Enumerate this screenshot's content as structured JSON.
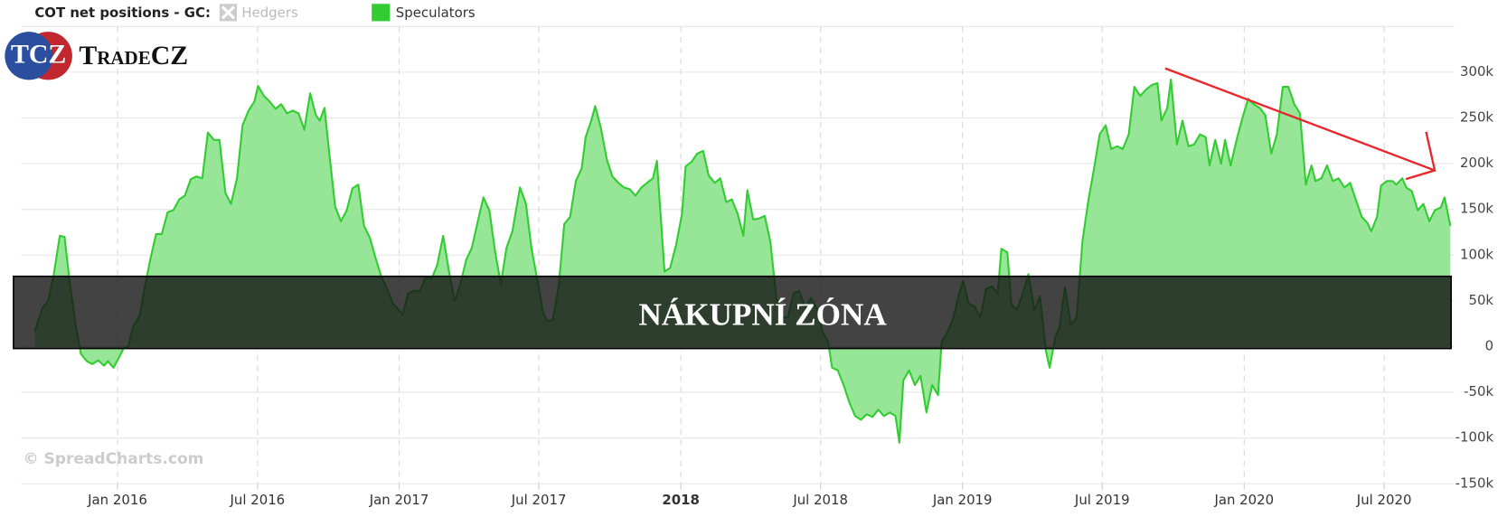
{
  "chart_data": {
    "type": "area",
    "title": "COT net positions - GC:",
    "logo": {
      "mark": "TCZ",
      "name": "TradeCZ"
    },
    "watermark": "© SpreadCharts.com",
    "annotation": "NÁKUPNÍ ZÓNA",
    "hidden_series": [
      {
        "name": "Hedgers",
        "color": "#cccccc"
      }
    ],
    "xlim": [
      2015.658,
      2020.745
    ],
    "xticks": [
      {
        "value": 2016,
        "label": "Jan 2016"
      },
      {
        "value": 2016.497,
        "label": "Jul 2016"
      },
      {
        "value": 2017,
        "label": "Jan 2017"
      },
      {
        "value": 2017.496,
        "label": "Jul 2017"
      },
      {
        "value": 2018,
        "label": "2018"
      },
      {
        "value": 2018.496,
        "label": "Jul 2018"
      },
      {
        "value": 2019,
        "label": "Jan 2019"
      },
      {
        "value": 2019.496,
        "label": "Jul 2019"
      },
      {
        "value": 2020,
        "label": "Jan 2020"
      },
      {
        "value": 2020.497,
        "label": "Jul 2020"
      }
    ],
    "ylim": [
      -150000,
      350000
    ],
    "yticks": [
      {
        "value": -150000,
        "label": "-150k"
      },
      {
        "value": -100000,
        "label": "-100k"
      },
      {
        "value": -50000,
        "label": "-50k"
      },
      0,
      {
        "value": 50000,
        "label": "50k"
      },
      {
        "value": 100000,
        "label": "100k"
      },
      {
        "value": 150000,
        "label": "150k"
      },
      {
        "value": 200000,
        "label": "200k"
      },
      {
        "value": 250000,
        "label": "250k"
      },
      {
        "value": 300000,
        "label": "300k"
      }
    ],
    "grid": true,
    "x": [
      2015.706,
      2015.733,
      2015.754,
      2015.774,
      2015.795,
      2015.812,
      2015.829,
      2015.85,
      2015.87,
      2015.891,
      2015.911,
      2015.932,
      2015.952,
      2015.966,
      2015.986,
      2016.007,
      2016.021,
      2016.038,
      2016.055,
      2016.079,
      2016.096,
      2016.116,
      2016.137,
      2016.157,
      2016.178,
      2016.198,
      2016.219,
      2016.239,
      2016.26,
      2016.28,
      2016.301,
      2016.321,
      2016.342,
      2016.362,
      2016.383,
      2016.403,
      2016.424,
      2016.444,
      2016.465,
      2016.486,
      2016.499,
      2016.52,
      2016.54,
      2016.561,
      2016.581,
      2016.602,
      2016.622,
      2016.643,
      2016.663,
      2016.684,
      2016.704,
      2016.718,
      2016.735,
      2016.752,
      2016.773,
      2016.793,
      2016.814,
      2016.834,
      2016.855,
      2016.875,
      2016.896,
      2016.916,
      2016.937,
      2016.957,
      2016.978,
      2016.998,
      2017.012,
      2017.032,
      2017.053,
      2017.074,
      2017.094,
      2017.115,
      2017.135,
      2017.156,
      2017.176,
      2017.197,
      2017.217,
      2017.238,
      2017.258,
      2017.279,
      2017.299,
      2017.32,
      2017.34,
      2017.361,
      2017.381,
      2017.402,
      2017.429,
      2017.45,
      2017.47,
      2017.491,
      2017.511,
      2017.525,
      2017.545,
      2017.566,
      2017.586,
      2017.607,
      2017.627,
      2017.648,
      2017.662,
      2017.682,
      2017.696,
      2017.716,
      2017.737,
      2017.757,
      2017.778,
      2017.798,
      2017.819,
      2017.839,
      2017.86,
      2017.88,
      2017.901,
      2017.915,
      2017.942,
      2017.962,
      2017.983,
      2018.004,
      2018.017,
      2018.038,
      2018.058,
      2018.079,
      2018.099,
      2018.12,
      2018.14,
      2018.161,
      2018.181,
      2018.202,
      2018.222,
      2018.236,
      2018.257,
      2018.277,
      2018.298,
      2018.318,
      2018.339,
      2018.359,
      2018.38,
      2018.4,
      2018.421,
      2018.441,
      2018.462,
      2018.482,
      2018.503,
      2018.523,
      2018.537,
      2018.557,
      2018.578,
      2018.598,
      2018.619,
      2018.639,
      2018.66,
      2018.68,
      2018.701,
      2018.721,
      2018.742,
      2018.762,
      2018.776,
      2018.79,
      2018.81,
      2018.831,
      2018.851,
      2018.872,
      2018.892,
      2018.913,
      2018.926,
      2018.947,
      2018.968,
      2018.988,
      2019.002,
      2019.022,
      2019.043,
      2019.063,
      2019.084,
      2019.104,
      2019.125,
      2019.138,
      2019.159,
      2019.173,
      2019.193,
      2019.214,
      2019.234,
      2019.255,
      2019.275,
      2019.296,
      2019.309,
      2019.33,
      2019.344,
      2019.364,
      2019.385,
      2019.405,
      2019.426,
      2019.446,
      2019.467,
      2019.487,
      2019.508,
      2019.528,
      2019.549,
      2019.569,
      2019.59,
      2019.61,
      2019.631,
      2019.651,
      2019.672,
      2019.692,
      2019.706,
      2019.727,
      2019.74,
      2019.761,
      2019.781,
      2019.802,
      2019.822,
      2019.843,
      2019.863,
      2019.877,
      2019.897,
      2019.918,
      2019.932,
      2019.952,
      2019.973,
      2019.993,
      2020.014,
      2020.034,
      2020.055,
      2020.075,
      2020.096,
      2020.116,
      2020.137,
      2020.157,
      2020.178,
      2020.198,
      2020.219,
      2020.239,
      2020.253,
      2020.274,
      2020.294,
      2020.315,
      2020.335,
      2020.356,
      2020.376,
      2020.397,
      2020.417,
      2020.438,
      2020.451,
      2020.472,
      2020.486,
      2020.506,
      2020.527,
      2020.54,
      2020.561,
      2020.575,
      2020.595,
      2020.616,
      2020.636,
      2020.657,
      2020.677,
      2020.698,
      2020.711,
      2020.732
    ],
    "series": [
      {
        "name": "Speculators",
        "color": "#33cc33",
        "fill": "#97e697",
        "values": [
          16000,
          42000,
          50000,
          79000,
          121000,
          120000,
          74000,
          26000,
          -8000,
          -16000,
          -19000,
          -15000,
          -21000,
          -16000,
          -23000,
          -11000,
          -2000,
          0,
          21000,
          34000,
          63000,
          95000,
          123000,
          123000,
          147000,
          149000,
          161000,
          165000,
          183000,
          186000,
          184000,
          234000,
          226000,
          226000,
          168000,
          156000,
          184000,
          242000,
          258000,
          268000,
          285000,
          274000,
          268000,
          260000,
          265000,
          255000,
          258000,
          255000,
          237000,
          277000,
          253000,
          247000,
          261000,
          211000,
          153000,
          137000,
          149000,
          173000,
          177000,
          132000,
          119000,
          97000,
          76000,
          63000,
          47000,
          40000,
          35000,
          58000,
          61000,
          61000,
          76000,
          74000,
          89000,
          121000,
          84000,
          49000,
          68000,
          95000,
          108000,
          137000,
          163000,
          149000,
          105000,
          68000,
          108000,
          126000,
          174000,
          156000,
          107000,
          72000,
          37000,
          28000,
          29000,
          65000,
          134000,
          142000,
          181000,
          195000,
          229000,
          247000,
          263000,
          239000,
          205000,
          186000,
          179000,
          174000,
          172000,
          165000,
          174000,
          179000,
          184000,
          203000,
          82000,
          86000,
          111000,
          145000,
          197000,
          202000,
          211000,
          214000,
          187000,
          179000,
          184000,
          158000,
          161000,
          145000,
          121000,
          171000,
          139000,
          140000,
          143000,
          114000,
          53000,
          32000,
          32000,
          58000,
          61000,
          42000,
          53000,
          42000,
          16000,
          5000,
          -23000,
          -26000,
          -42000,
          -61000,
          -76000,
          -80000,
          -74000,
          -77000,
          -69000,
          -76000,
          -72000,
          -76000,
          -105000,
          -37000,
          -26000,
          -42000,
          -32000,
          -72000,
          -42000,
          -53000,
          5000,
          16000,
          32000,
          58000,
          72000,
          47000,
          44000,
          32000,
          63000,
          66000,
          58000,
          107000,
          103000,
          47000,
          40000,
          58000,
          79000,
          40000,
          55000,
          -5000,
          -23000,
          11000,
          21000,
          65000,
          23000,
          32000,
          116000,
          158000,
          195000,
          232000,
          242000,
          216000,
          219000,
          216000,
          232000,
          284000,
          274000,
          281000,
          286000,
          288000,
          247000,
          261000,
          292000,
          221000,
          247000,
          219000,
          221000,
          232000,
          229000,
          198000,
          226000,
          200000,
          226000,
          198000,
          226000,
          249000,
          271000,
          265000,
          261000,
          253000,
          211000,
          232000,
          284000,
          284000,
          265000,
          255000,
          177000,
          198000,
          181000,
          184000,
          198000,
          181000,
          184000,
          174000,
          179000,
          160000,
          142000,
          135000,
          126000,
          142000,
          176000,
          181000,
          181000,
          177000,
          184000,
          174000,
          170000,
          149000,
          156000,
          137000,
          149000,
          152000,
          163000,
          132000
        ]
      }
    ]
  }
}
